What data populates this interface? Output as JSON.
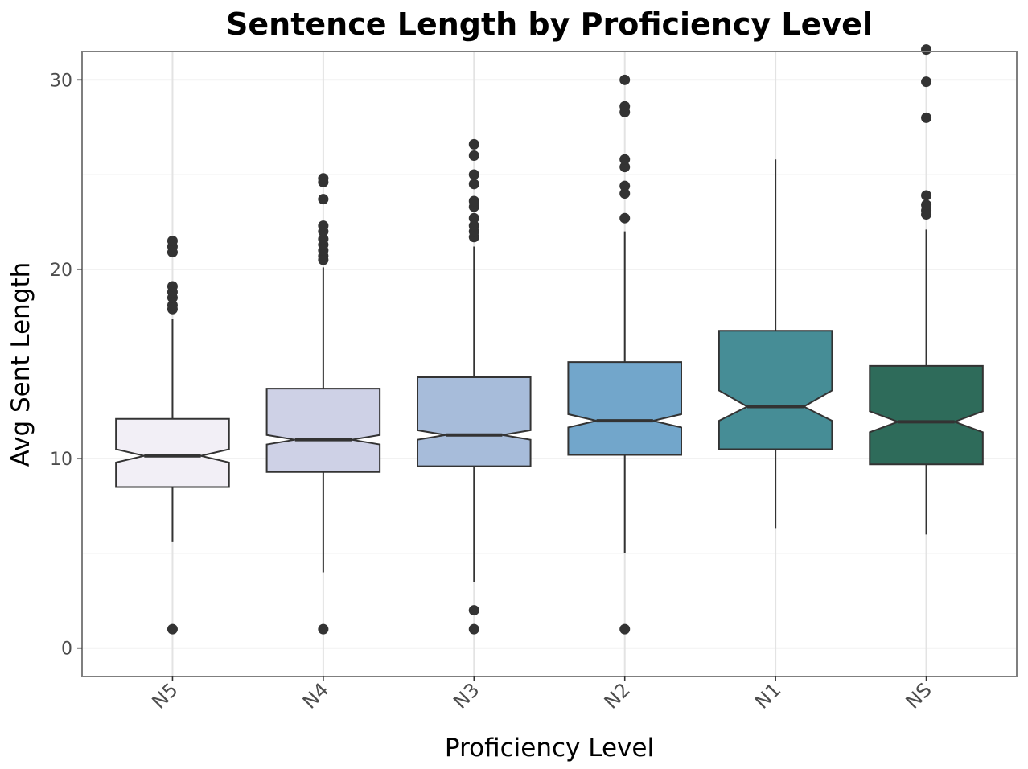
{
  "chart_data": {
    "type": "boxplot",
    "title": "Sentence Length by Proficiency Level",
    "xlabel": "Proficiency Level",
    "ylabel": "Avg Sent Length",
    "ylim": [
      -1.5,
      31.5
    ],
    "yticks": [
      0,
      10,
      20,
      30
    ],
    "grid": true,
    "notched": true,
    "categories": [
      "N5",
      "N4",
      "N3",
      "N2",
      "N1",
      "NS"
    ],
    "fills": [
      "#f2eff6",
      "#ced1e6",
      "#a7bcda",
      "#72a6cb",
      "#468d96",
      "#2e6b5a"
    ],
    "boxes": [
      {
        "category": "N5",
        "whisker_low": 5.6,
        "q1": 8.5,
        "median": 10.15,
        "q3": 12.1,
        "whisker_high": 17.4,
        "notch_low": 9.8,
        "notch_high": 10.5,
        "outliers": [
          1.0,
          17.9,
          18.1,
          18.5,
          18.8,
          19.1,
          20.9,
          21.2,
          21.5
        ]
      },
      {
        "category": "N4",
        "whisker_low": 4.0,
        "q1": 9.3,
        "median": 11.0,
        "q3": 13.7,
        "whisker_high": 20.1,
        "notch_low": 10.75,
        "notch_high": 11.25,
        "outliers": [
          1.0,
          20.5,
          20.7,
          21.0,
          21.3,
          21.6,
          22.0,
          22.3,
          23.7,
          24.6,
          24.8
        ]
      },
      {
        "category": "N3",
        "whisker_low": 3.5,
        "q1": 9.6,
        "median": 11.25,
        "q3": 14.3,
        "whisker_high": 21.2,
        "notch_low": 11.0,
        "notch_high": 11.5,
        "outliers": [
          1.0,
          2.0,
          21.7,
          22.0,
          22.3,
          22.7,
          23.3,
          23.6,
          24.5,
          25.0,
          26.0,
          26.6
        ]
      },
      {
        "category": "N2",
        "whisker_low": 5.0,
        "q1": 10.2,
        "median": 12.0,
        "q3": 15.1,
        "whisker_high": 22.0,
        "notch_low": 11.65,
        "notch_high": 12.35,
        "outliers": [
          1.0,
          22.7,
          24.0,
          24.4,
          25.4,
          25.8,
          28.3,
          28.6,
          30.0
        ]
      },
      {
        "category": "N1",
        "whisker_low": 6.3,
        "q1": 10.5,
        "median": 12.75,
        "q3": 16.75,
        "whisker_high": 25.8,
        "notch_low": 12.0,
        "notch_high": 13.6,
        "outliers": []
      },
      {
        "category": "NS",
        "whisker_low": 6.0,
        "q1": 9.7,
        "median": 11.95,
        "q3": 14.9,
        "whisker_high": 22.1,
        "notch_low": 11.4,
        "notch_high": 12.5,
        "outliers": [
          22.9,
          23.1,
          23.4,
          23.9,
          28.0,
          29.9,
          31.6
        ]
      }
    ]
  }
}
